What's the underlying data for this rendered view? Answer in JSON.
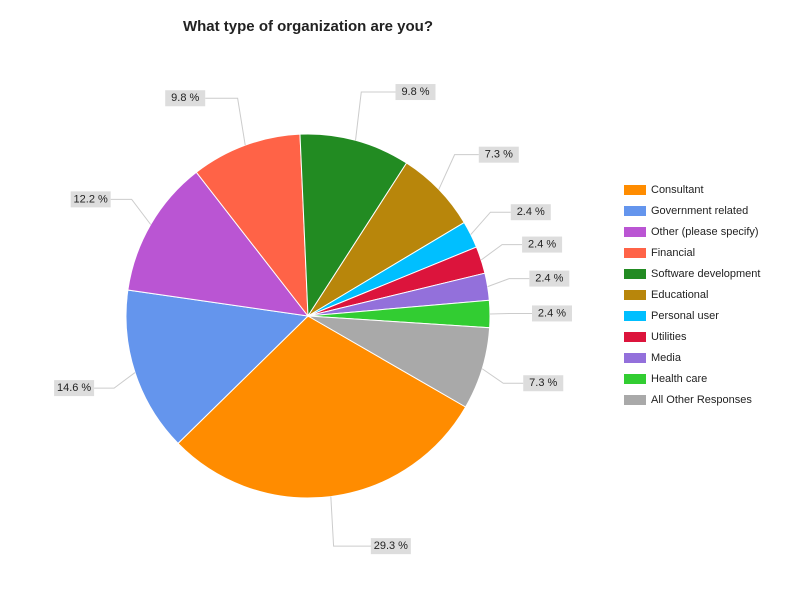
{
  "chart_data": {
    "type": "pie",
    "title": "What type of organization are you?",
    "categories": [
      "Consultant",
      "Government related",
      "Other (please specify)",
      "Financial",
      "Software development",
      "Educational",
      "Personal user",
      "Utilities",
      "Media",
      "Health care",
      "All Other Responses"
    ],
    "values": [
      29.3,
      14.6,
      12.2,
      9.8,
      9.8,
      7.3,
      2.4,
      2.4,
      2.4,
      2.4,
      7.3
    ],
    "value_labels": [
      "29.3 %",
      "14.6 %",
      "12.2 %",
      "9.8 %",
      "9.8 %",
      "7.3 %",
      "2.4 %",
      "2.4 %",
      "2.4 %",
      "2.4 %",
      "7.3 %"
    ],
    "colors": [
      "#ff8c00",
      "#6495ed",
      "#ba55d3",
      "#ff6347",
      "#228b22",
      "#b8860b",
      "#00bfff",
      "#dc143c",
      "#9370db",
      "#32cd32",
      "#a9a9a9"
    ],
    "legend": "right"
  }
}
